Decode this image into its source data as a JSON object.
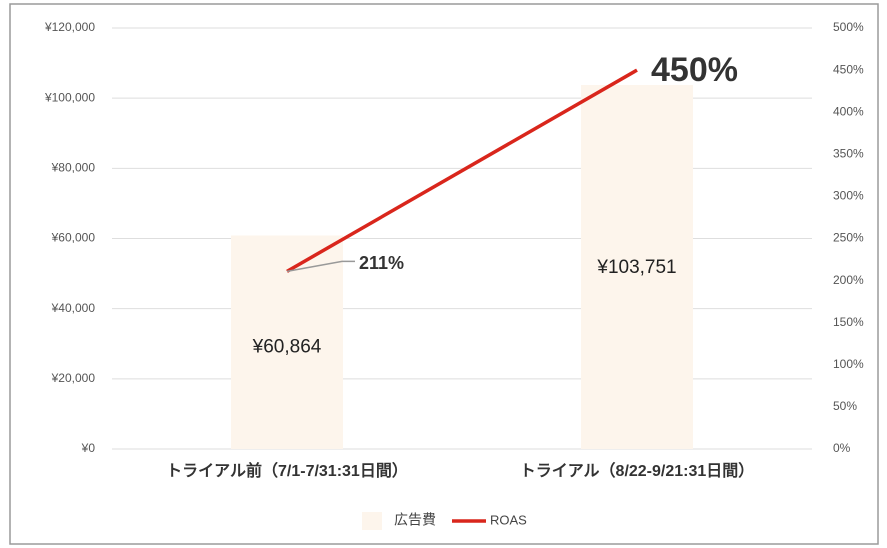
{
  "chart_data": {
    "type": "bar",
    "categories": [
      "トライアル前（7/1-7/31:31日間）",
      "トライアル（8/22-9/21:31日間）"
    ],
    "series": [
      {
        "name": "広告費",
        "type": "bar",
        "color": "#fdf5ec",
        "values": [
          60864,
          103751
        ],
        "value_labels": [
          "¥60,864",
          "¥103,751"
        ]
      },
      {
        "name": "ROAS",
        "type": "line",
        "axis": "y2",
        "color": "#d9261c",
        "values": [
          211,
          450
        ],
        "value_labels": [
          "211%",
          "450%"
        ]
      }
    ],
    "ylim": [
      0,
      120000
    ],
    "yticks": [
      {
        "value": 0,
        "label": "¥0"
      },
      {
        "value": 20000,
        "label": "¥20,000"
      },
      {
        "value": 40000,
        "label": "¥40,000"
      },
      {
        "value": 60000,
        "label": "¥60,000"
      },
      {
        "value": 80000,
        "label": "¥80,000"
      },
      {
        "value": 100000,
        "label": "¥100,000"
      },
      {
        "value": 120000,
        "label": "¥120,000"
      }
    ],
    "y2lim": [
      0,
      500
    ],
    "y2ticks": [
      {
        "value": 0,
        "label": "0%"
      },
      {
        "value": 50,
        "label": "50%"
      },
      {
        "value": 100,
        "label": "100%"
      },
      {
        "value": 150,
        "label": "150%"
      },
      {
        "value": 200,
        "label": "200%"
      },
      {
        "value": 250,
        "label": "250%"
      },
      {
        "value": 300,
        "label": "300%"
      },
      {
        "value": 350,
        "label": "350%"
      },
      {
        "value": 400,
        "label": "400%"
      },
      {
        "value": 450,
        "label": "450%"
      },
      {
        "value": 500,
        "label": "500%"
      }
    ],
    "grid": true,
    "legend": "bottom"
  }
}
